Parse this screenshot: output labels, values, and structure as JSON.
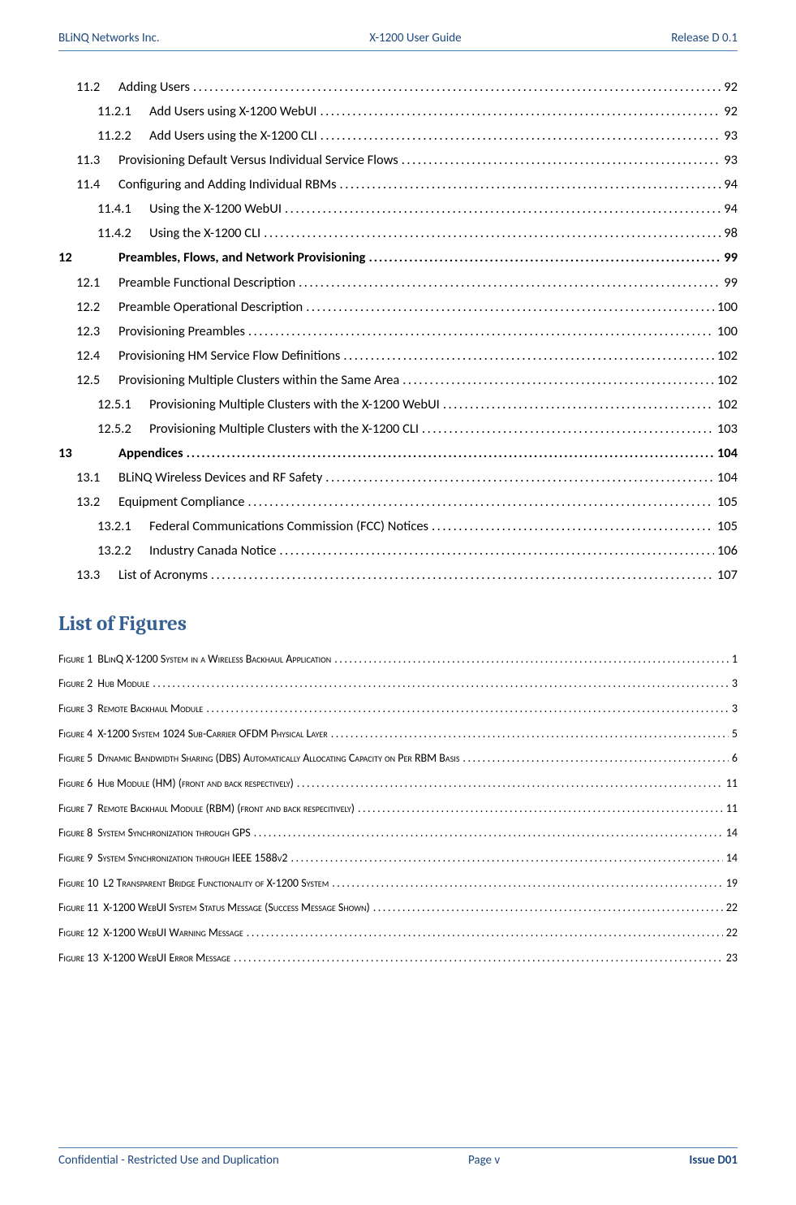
{
  "header": {
    "left": "BLiNQ Networks Inc.",
    "center": "X-1200 User Guide",
    "right": "Release D 0.1"
  },
  "dotfill": "........................................................................................................................................................................................................................",
  "toc": [
    {
      "lvl": 2,
      "num": "11.2",
      "title": "Adding Users",
      "page": "92"
    },
    {
      "lvl": 3,
      "num": "11.2.1",
      "title": "Add Users using X-1200 WebUI",
      "page": "92"
    },
    {
      "lvl": 3,
      "num": "11.2.2",
      "title": "Add Users using the X-1200 CLI",
      "page": "93"
    },
    {
      "lvl": 2,
      "num": "11.3",
      "title": "Provisioning Default Versus Individual Service Flows",
      "page": "93"
    },
    {
      "lvl": 2,
      "num": "11.4",
      "title": "Configuring and Adding Individual RBMs",
      "page": "94"
    },
    {
      "lvl": 3,
      "num": "11.4.1",
      "title": "Using the X-1200 WebUI",
      "page": "94"
    },
    {
      "lvl": 3,
      "num": "11.4.2",
      "title": "Using the X-1200 CLI",
      "page": "98"
    },
    {
      "lvl": 1,
      "num": "12",
      "title": "Preambles, Flows, and Network Provisioning",
      "page": "99"
    },
    {
      "lvl": 2,
      "num": "12.1",
      "title": "Preamble Functional Description",
      "page": "99"
    },
    {
      "lvl": 2,
      "num": "12.2",
      "title": "Preamble Operational Description",
      "page": "100"
    },
    {
      "lvl": 2,
      "num": "12.3",
      "title": "Provisioning Preambles",
      "page": "100"
    },
    {
      "lvl": 2,
      "num": "12.4",
      "title": "Provisioning HM Service Flow Definitions",
      "page": "102"
    },
    {
      "lvl": 2,
      "num": "12.5",
      "title": "Provisioning Multiple Clusters within the Same Area",
      "page": "102"
    },
    {
      "lvl": 3,
      "num": "12.5.1",
      "title": "Provisioning Multiple Clusters with the X-1200 WebUI",
      "page": "102"
    },
    {
      "lvl": 3,
      "num": "12.5.2",
      "title": "Provisioning Multiple Clusters with the X-1200 CLI",
      "page": "103"
    },
    {
      "lvl": 1,
      "num": "13",
      "title": "Appendices",
      "page": "104"
    },
    {
      "lvl": 2,
      "num": "13.1",
      "title": "BLiNQ Wireless Devices and RF Safety",
      "page": "104"
    },
    {
      "lvl": 2,
      "num": "13.2",
      "title": "Equipment Compliance",
      "page": "105"
    },
    {
      "lvl": 3,
      "num": "13.2.1",
      "title": "Federal Communications Commission (FCC) Notices",
      "page": "105"
    },
    {
      "lvl": 3,
      "num": "13.2.2",
      "title": "Industry Canada Notice",
      "page": "106"
    },
    {
      "lvl": 2,
      "num": "13.3",
      "title": "List of Acronyms",
      "page": "107"
    }
  ],
  "lof_heading": "List of Figures",
  "lof_prefix": "Figure",
  "lof": [
    {
      "num": "1",
      "title": "BLinQ X-1200 System in a Wireless Backhaul Application",
      "page": "1"
    },
    {
      "num": "2",
      "title": "Hub Module",
      "page": "3"
    },
    {
      "num": "3",
      "title": "Remote Backhaul Module",
      "page": "3"
    },
    {
      "num": "4",
      "title": "X-1200 System 1024 Sub-Carrier OFDM Physical Layer",
      "page": "5"
    },
    {
      "num": "5",
      "title": "Dynamic Bandwidth Sharing (DBS) Automatically Allocating Capacity on Per RBM Basis",
      "page": "6"
    },
    {
      "num": "6",
      "title": "Hub Module (HM) (front and back respectively)",
      "page": "11"
    },
    {
      "num": "7",
      "title": "Remote Backhaul Module (RBM) (front and back respecitively)",
      "page": "11"
    },
    {
      "num": "8",
      "title": "System Synchronization through GPS",
      "page": "14"
    },
    {
      "num": "9",
      "title": "System Synchronization through IEEE 1588v2",
      "page": "14"
    },
    {
      "num": "10",
      "title": "L2 Transparent Bridge Functionality of X-1200 System",
      "page": "19"
    },
    {
      "num": "11",
      "title": "X-1200 WebUI System Status Message (Success Message Shown)",
      "page": "22"
    },
    {
      "num": "12",
      "title": "X-1200 WebUI Warning Message",
      "page": "22"
    },
    {
      "num": "13",
      "title": "X-1200 WebUI Error Message",
      "page": "23"
    }
  ],
  "footer": {
    "left": "Confidential - Restricted Use and Duplication",
    "center": "Page v",
    "right": "Issue D01"
  }
}
